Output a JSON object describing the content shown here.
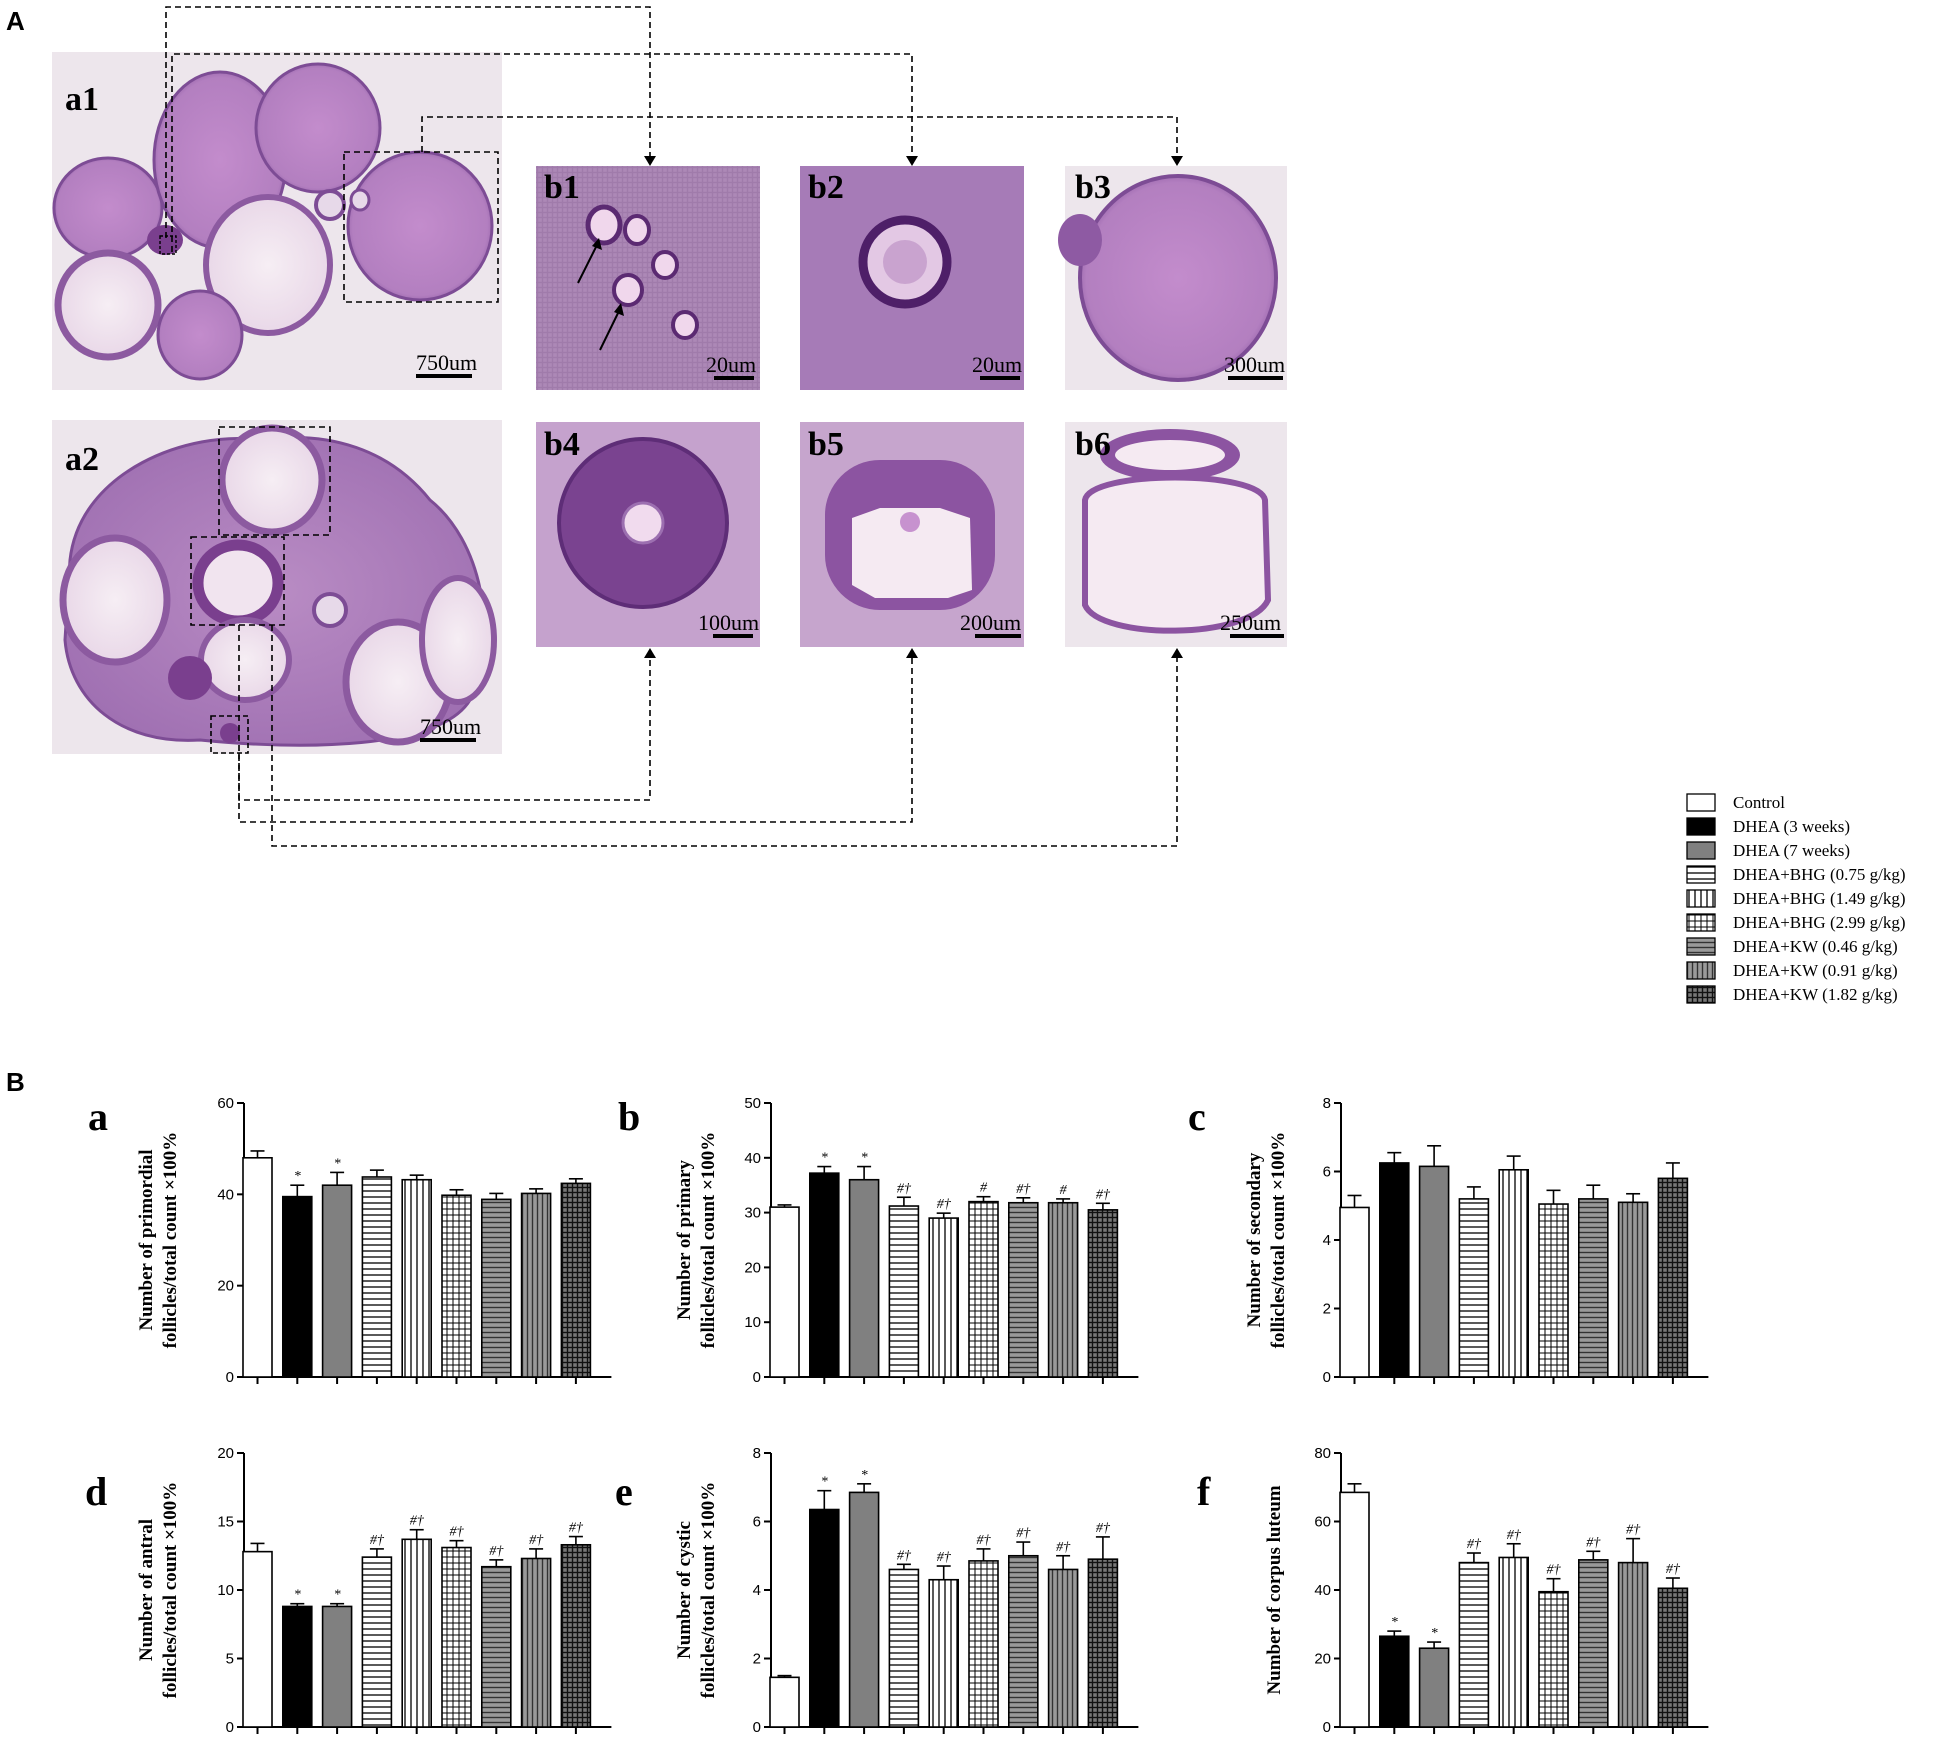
{
  "panel_labels": {
    "A": "A",
    "B": "B"
  },
  "images": [
    {
      "label": "a1",
      "scale": "750um"
    },
    {
      "label": "a2",
      "scale": "750um"
    },
    {
      "label": "b1",
      "scale": "20um"
    },
    {
      "label": "b2",
      "scale": "20um"
    },
    {
      "label": "b3",
      "scale": "300um"
    },
    {
      "label": "b4",
      "scale": "100um"
    },
    {
      "label": "b5",
      "scale": "200um"
    },
    {
      "label": "b6",
      "scale": "250um"
    }
  ],
  "legend": [
    {
      "label": "Control",
      "pattern": "white"
    },
    {
      "label": "DHEA (3 weeks)",
      "pattern": "black"
    },
    {
      "label": "DHEA (7 weeks)",
      "pattern": "gray"
    },
    {
      "label": "DHEA+BHG (0.75 g/kg)",
      "pattern": "hlines"
    },
    {
      "label": "DHEA+BHG (1.49 g/kg)",
      "pattern": "vlines"
    },
    {
      "label": "DHEA+BHG (2.99 g/kg)",
      "pattern": "grid"
    },
    {
      "label": "DHEA+KW (0.46 g/kg)",
      "pattern": "hgray"
    },
    {
      "label": "DHEA+KW (0.91 g/kg)",
      "pattern": "vgray"
    },
    {
      "label": "DHEA+KW (1.82 g/kg)",
      "pattern": "dgrid"
    }
  ],
  "colors": {
    "black_bar": "#000000",
    "gray_bar": "#808080",
    "he_stain_pink": "#c9a3cf",
    "he_stain_purple": "#8e5aa3",
    "background": "#ffffff"
  },
  "chart_data": [
    {
      "id": "a",
      "type": "bar",
      "title": "",
      "letter": "a",
      "ylabel": [
        "Number of primordial",
        "follicles/total count ×100%"
      ],
      "ylim": [
        0,
        60
      ],
      "ticks": [
        0,
        20,
        40,
        60
      ],
      "values": [
        48,
        39.5,
        42,
        43.8,
        43.2,
        39.8,
        38.9,
        40.2,
        42.4
      ],
      "errors": [
        1.5,
        2.5,
        2.8,
        1.5,
        1.0,
        1.2,
        1.3,
        1.0,
        1.0
      ],
      "sig": [
        "",
        "*",
        "*",
        "",
        "",
        "",
        "",
        "",
        ""
      ]
    },
    {
      "id": "b",
      "type": "bar",
      "title": "",
      "letter": "b",
      "ylabel": [
        "Number of primary",
        "follicles/total count ×100%"
      ],
      "ylim": [
        0,
        50
      ],
      "ticks": [
        0,
        10,
        20,
        30,
        40,
        50
      ],
      "values": [
        31,
        37.2,
        36,
        31.2,
        29,
        32,
        31.8,
        31.8,
        30.5
      ],
      "errors": [
        0.4,
        1.2,
        2.4,
        1.6,
        0.9,
        0.9,
        0.9,
        0.7,
        1.2
      ],
      "sig": [
        "",
        "*",
        "*",
        "#†",
        "#†",
        "#",
        "#†",
        "#",
        "#†"
      ]
    },
    {
      "id": "c",
      "type": "bar",
      "title": "",
      "letter": "c",
      "ylabel": [
        "Number of secondary",
        "follicles/total count ×100%"
      ],
      "ylim": [
        0,
        8
      ],
      "ticks": [
        0,
        2,
        4,
        6,
        8
      ],
      "values": [
        4.95,
        6.25,
        6.15,
        5.2,
        6.05,
        5.05,
        5.2,
        5.1,
        5.8
      ],
      "errors": [
        0.35,
        0.3,
        0.6,
        0.35,
        0.4,
        0.4,
        0.4,
        0.25,
        0.45
      ],
      "sig": [
        "",
        "",
        "",
        "",
        "",
        "",
        "",
        "",
        ""
      ]
    },
    {
      "id": "d",
      "type": "bar",
      "title": "",
      "letter": "d",
      "ylabel": [
        "Number of antral",
        "follicles/total count ×100%"
      ],
      "ylim": [
        0,
        20
      ],
      "ticks": [
        0,
        5,
        10,
        15,
        20
      ],
      "values": [
        12.8,
        8.8,
        8.8,
        12.4,
        13.7,
        13.1,
        11.7,
        12.3,
        13.3
      ],
      "errors": [
        0.6,
        0.2,
        0.2,
        0.6,
        0.7,
        0.5,
        0.5,
        0.7,
        0.6
      ],
      "sig": [
        "",
        "*",
        "*",
        "#†",
        "#†",
        "#†",
        "#†",
        "#†",
        "#†"
      ]
    },
    {
      "id": "e",
      "type": "bar",
      "title": "",
      "letter": "e",
      "ylabel": [
        "Number of cystic",
        "follicles/total count ×100%"
      ],
      "ylim": [
        0,
        8
      ],
      "ticks": [
        0,
        2,
        4,
        6,
        8
      ],
      "values": [
        1.45,
        6.35,
        6.85,
        4.6,
        4.3,
        4.85,
        5.0,
        4.6,
        4.9
      ],
      "errors": [
        0.05,
        0.55,
        0.25,
        0.15,
        0.4,
        0.35,
        0.4,
        0.4,
        0.65
      ],
      "sig": [
        "",
        "*",
        "*",
        "#†",
        "#†",
        "#†",
        "#†",
        "#†",
        "#†"
      ]
    },
    {
      "id": "f",
      "type": "bar",
      "title": "",
      "letter": "f",
      "ylabel": [
        "Number of corpus luteum",
        ""
      ],
      "ylim": [
        0,
        80
      ],
      "ticks": [
        0,
        20,
        40,
        60,
        80
      ],
      "values": [
        68.5,
        26.5,
        23,
        48,
        49.5,
        39.5,
        48.8,
        48,
        40.5
      ],
      "errors": [
        2.5,
        1.5,
        1.8,
        2.8,
        4.0,
        3.8,
        2.5,
        7.0,
        3.0
      ],
      "sig": [
        "",
        "*",
        "*",
        "#†",
        "#†",
        "#†",
        "#†",
        "#†",
        "#†"
      ]
    }
  ]
}
